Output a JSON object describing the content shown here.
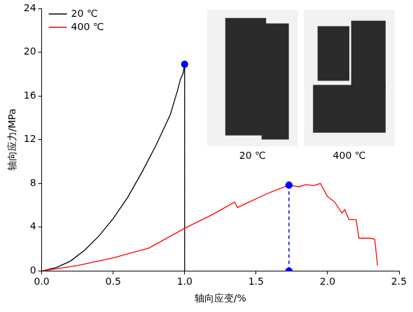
{
  "chart_data": {
    "type": "line",
    "x_label": "轴向应变/%",
    "y_label": "轴向应力/MPa",
    "xlim": [
      0,
      2.5
    ],
    "xticks": [
      {
        "value": 0,
        "label": "0.0"
      },
      0.5,
      {
        "value": 1,
        "label": "1.0"
      },
      1.5,
      {
        "value": 2,
        "label": "2.0"
      },
      2.5
    ],
    "ylim": [
      0,
      24
    ],
    "yticks": [
      0,
      4,
      8,
      12,
      16,
      20,
      24
    ],
    "grid": false,
    "legend": "upper left",
    "series": [
      {
        "name": "20 ℃",
        "color": "#000000",
        "line_style": "solid",
        "x": [
          0,
          0.1,
          0.2,
          0.3,
          0.4,
          0.5,
          0.6,
          0.7,
          0.8,
          0.9,
          0.95,
          0.97,
          0.99,
          1.0,
          1.0
        ],
        "values": [
          0,
          0.3,
          0.9,
          1.9,
          3.2,
          4.8,
          6.7,
          9.0,
          11.5,
          14.3,
          16.5,
          17.5,
          18.1,
          18.9,
          0
        ]
      },
      {
        "name": "400 ℃",
        "color": "#ff0000",
        "line_style": "solid",
        "x": [
          0,
          0.25,
          0.5,
          0.75,
          1.0,
          1.2,
          1.35,
          1.37,
          1.45,
          1.6,
          1.73,
          1.8,
          1.85,
          1.9,
          1.95,
          2.0,
          2.05,
          2.1,
          2.12,
          2.15,
          2.2,
          2.22,
          2.3,
          2.33,
          2.35
        ],
        "values": [
          0,
          0.5,
          1.2,
          2.1,
          3.9,
          5.2,
          6.3,
          5.8,
          6.3,
          7.2,
          7.85,
          7.7,
          7.9,
          7.8,
          8.0,
          6.8,
          6.3,
          5.3,
          5.6,
          4.7,
          4.7,
          3.0,
          3.0,
          2.9,
          0.5
        ]
      },
      {
        "color": "#0000ff",
        "marker": "circle",
        "line_style": "none",
        "x": [
          1.0
        ],
        "values": [
          18.9
        ]
      },
      {
        "color": "#0000ff",
        "marker": "circle",
        "line_style": "dashed",
        "x": [
          1.73,
          1.73
        ],
        "values": [
          7.85,
          0
        ]
      }
    ],
    "insets": [
      {
        "label": "20 ℃"
      },
      {
        "label": "400 ℃"
      }
    ]
  }
}
